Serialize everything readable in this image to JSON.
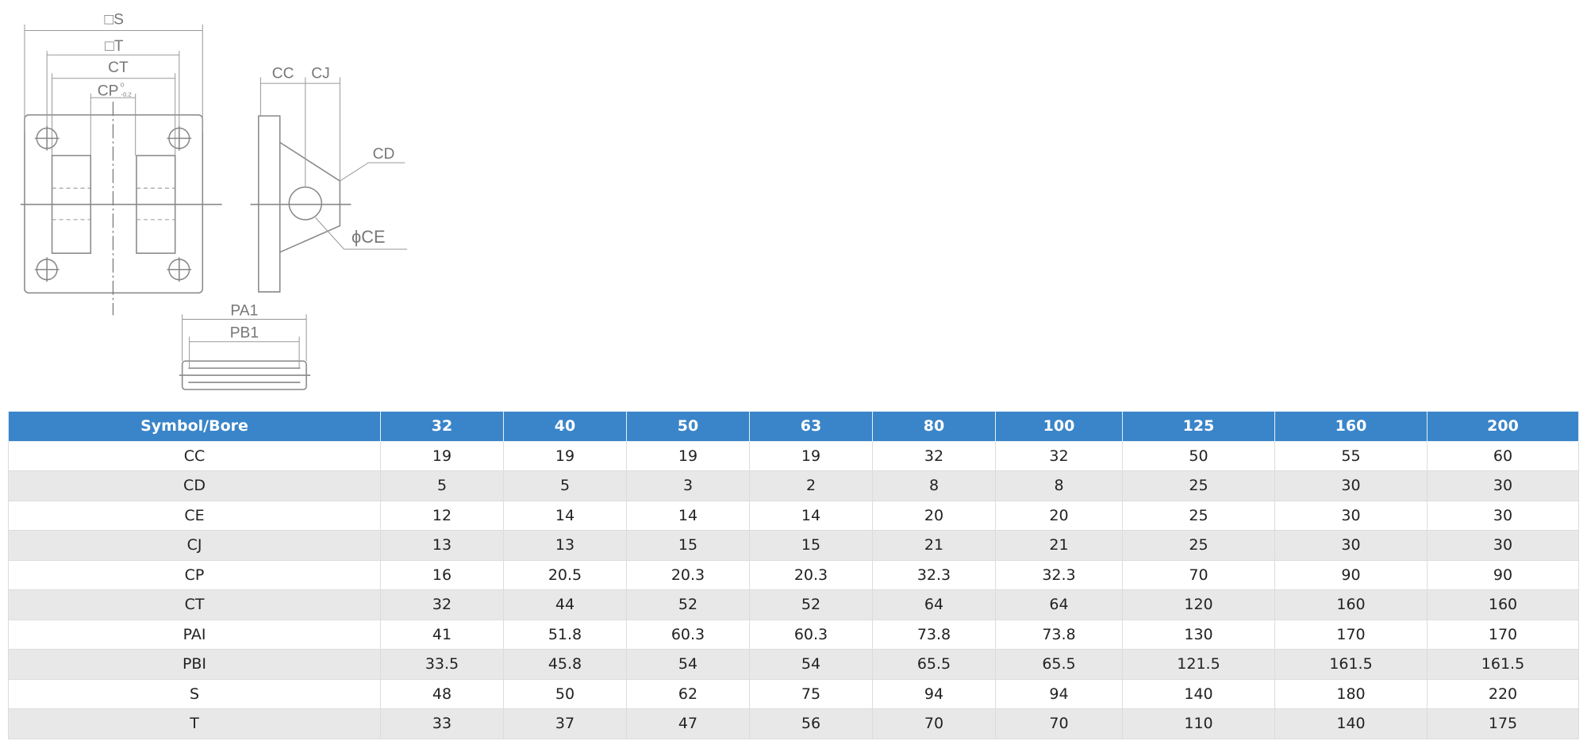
{
  "drawing": {
    "labels": {
      "s": "□S",
      "t": "□T",
      "ct": "CT",
      "cp": "CP",
      "cp_tol_upper": "0",
      "cp_tol_lower": "-0.2",
      "cc": "CC",
      "cj": "CJ",
      "cd": "CD",
      "ce": "ϕCE",
      "pa1": "PA1",
      "pb1": "PB1"
    }
  },
  "table": {
    "header": [
      "Symbol/Bore",
      "32",
      "40",
      "50",
      "63",
      "80",
      "100",
      "125",
      "160",
      "200"
    ],
    "rows": [
      [
        "CC",
        "19",
        "19",
        "19",
        "19",
        "32",
        "32",
        "50",
        "55",
        "60"
      ],
      [
        "CD",
        "5",
        "5",
        "3",
        "2",
        "8",
        "8",
        "25",
        "30",
        "30"
      ],
      [
        "CE",
        "12",
        "14",
        "14",
        "14",
        "20",
        "20",
        "25",
        "30",
        "30"
      ],
      [
        "CJ",
        "13",
        "13",
        "15",
        "15",
        "21",
        "21",
        "25",
        "30",
        "30"
      ],
      [
        "CP",
        "16",
        "20.5",
        "20.3",
        "20.3",
        "32.3",
        "32.3",
        "70",
        "90",
        "90"
      ],
      [
        "CT",
        "32",
        "44",
        "52",
        "52",
        "64",
        "64",
        "120",
        "160",
        "160"
      ],
      [
        "PAI",
        "41",
        "51.8",
        "60.3",
        "60.3",
        "73.8",
        "73.8",
        "130",
        "170",
        "170"
      ],
      [
        "PBI",
        "33.5",
        "45.8",
        "54",
        "54",
        "65.5",
        "65.5",
        "121.5",
        "161.5",
        "161.5"
      ],
      [
        "S",
        "48",
        "50",
        "62",
        "75",
        "94",
        "94",
        "140",
        "180",
        "220"
      ],
      [
        "T",
        "33",
        "37",
        "47",
        "56",
        "70",
        "70",
        "110",
        "140",
        "175"
      ]
    ]
  }
}
